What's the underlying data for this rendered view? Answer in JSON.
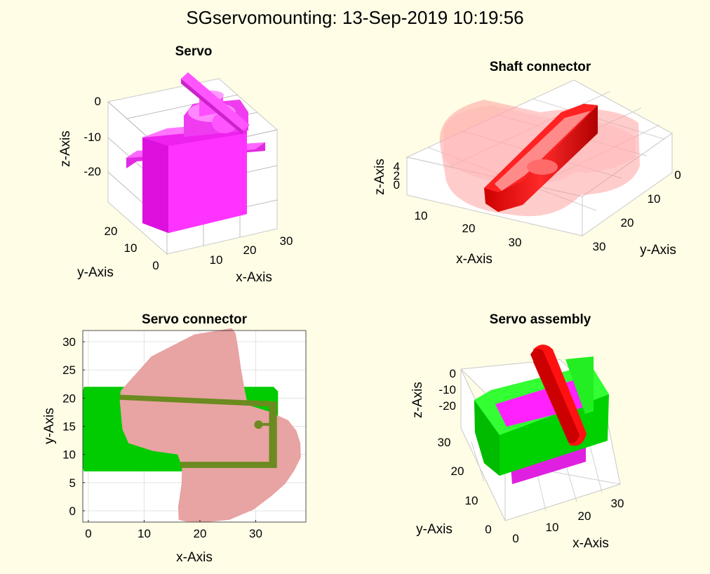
{
  "figure": {
    "title": "SGservomounting: 13-Sep-2019 10:19:56"
  },
  "chart_data": [
    {
      "type": "surface3d",
      "title": "Servo",
      "xlabel": "x-Axis",
      "ylabel": "y-Axis",
      "zlabel": "z-Axis",
      "xticks": [
        "10",
        "20",
        "30"
      ],
      "yticks": [
        "0",
        "10",
        "20"
      ],
      "zticks": [
        "0",
        "-10",
        "-20"
      ],
      "xlim": [
        0,
        32
      ],
      "ylim": [
        0,
        25
      ],
      "zlim": [
        -28,
        5
      ],
      "grid": true,
      "colors": {
        "body": "#ff00ff"
      }
    },
    {
      "type": "surface3d",
      "title": "Shaft connector",
      "xlabel": "x-Axis",
      "ylabel": "y-Axis",
      "zlabel": "z-Axis",
      "xticks": [
        "10",
        "20",
        "30"
      ],
      "yticks": [
        "0",
        "10",
        "20",
        "30"
      ],
      "zticks": [
        "0",
        "2",
        "4"
      ],
      "xlim": [
        5,
        35
      ],
      "ylim": [
        0,
        32
      ],
      "zlim": [
        0,
        5
      ],
      "grid": true,
      "colors": {
        "shaft": "#ff0000",
        "envelope": "#ff9999"
      }
    },
    {
      "type": "patch2d",
      "title": "Servo connector",
      "xlabel": "x-Axis",
      "ylabel": "y-Axis",
      "xticks": [
        0,
        10,
        20,
        30
      ],
      "yticks": [
        0,
        5,
        10,
        15,
        20,
        25,
        30
      ],
      "xlim": [
        -1,
        39
      ],
      "ylim": [
        -2,
        32
      ],
      "grid": true,
      "shapes": [
        {
          "name": "green-plate",
          "color": "#00cc00",
          "points": [
            [
              -1,
              21.2
            ],
            [
              -0.8,
              22
            ],
            [
              33.2,
              22
            ],
            [
              34,
              21.2
            ],
            [
              34,
              7.7
            ],
            [
              33.2,
              7
            ],
            [
              -0.8,
              7
            ],
            [
              -1,
              7.7
            ]
          ]
        },
        {
          "name": "pink-lobe",
          "color": "#e8a3a3",
          "points": [
            [
              5.6,
              19.9
            ],
            [
              5.8,
              21.3
            ],
            [
              11.3,
              27.4
            ],
            [
              19,
              31.3
            ],
            [
              25.7,
              32.4
            ],
            [
              26.4,
              31.5
            ],
            [
              26.8,
              29.2
            ],
            [
              27.4,
              25
            ],
            [
              28.1,
              21.1
            ],
            [
              28.6,
              18.8
            ],
            [
              32.4,
              17.6
            ],
            [
              35.8,
              16.1
            ],
            [
              37.3,
              14.2
            ],
            [
              38,
              12
            ],
            [
              38.1,
              9.5
            ],
            [
              36.9,
              7.1
            ],
            [
              35.3,
              4.8
            ],
            [
              32.8,
              2.6
            ],
            [
              29.6,
              0.2
            ],
            [
              25.3,
              -1.6
            ],
            [
              21.3,
              -2
            ],
            [
              17.5,
              -1.9
            ],
            [
              16.2,
              -1.6
            ],
            [
              16.1,
              0.7
            ],
            [
              16.7,
              4.7
            ],
            [
              16.8,
              7.7
            ],
            [
              16,
              10
            ],
            [
              11.6,
              10.6
            ],
            [
              7.2,
              12
            ],
            [
              6.1,
              14.5
            ]
          ]
        },
        {
          "name": "overlap-frame",
          "color": "#6b8a1f",
          "points": [
            [
              5.6,
              20.6
            ],
            [
              33.8,
              19.4
            ],
            [
              33.8,
              7.6
            ],
            [
              16.5,
              7.6
            ],
            [
              16.5,
              8.7
            ],
            [
              32.4,
              8.7
            ],
            [
              32.4,
              15.1
            ],
            [
              30.6,
              15.1
            ],
            [
              30.6,
              15.6
            ],
            [
              32.4,
              15.6
            ],
            [
              32.4,
              18.5
            ],
            [
              5.6,
              19.7
            ]
          ]
        }
      ],
      "markers": [
        {
          "name": "shaft-hole",
          "x": 30.5,
          "y": 15.3,
          "color": "#6b8a1f"
        }
      ]
    },
    {
      "type": "surface3d",
      "title": "Servo assembly",
      "xlabel": "x-Axis",
      "ylabel": "y-Axis",
      "zlabel": "z-Axis",
      "xticks": [
        "0",
        "10",
        "20",
        "30"
      ],
      "yticks": [
        "0",
        "10",
        "20",
        "30"
      ],
      "zticks": [
        "0",
        "-10",
        "-20"
      ],
      "xlim": [
        0,
        32
      ],
      "ylim": [
        0,
        32
      ],
      "zlim": [
        -28,
        5
      ],
      "grid": true,
      "colors": {
        "mount": "#00ff00",
        "servo": "#ff00ff",
        "shaft": "#ff0000"
      }
    }
  ]
}
